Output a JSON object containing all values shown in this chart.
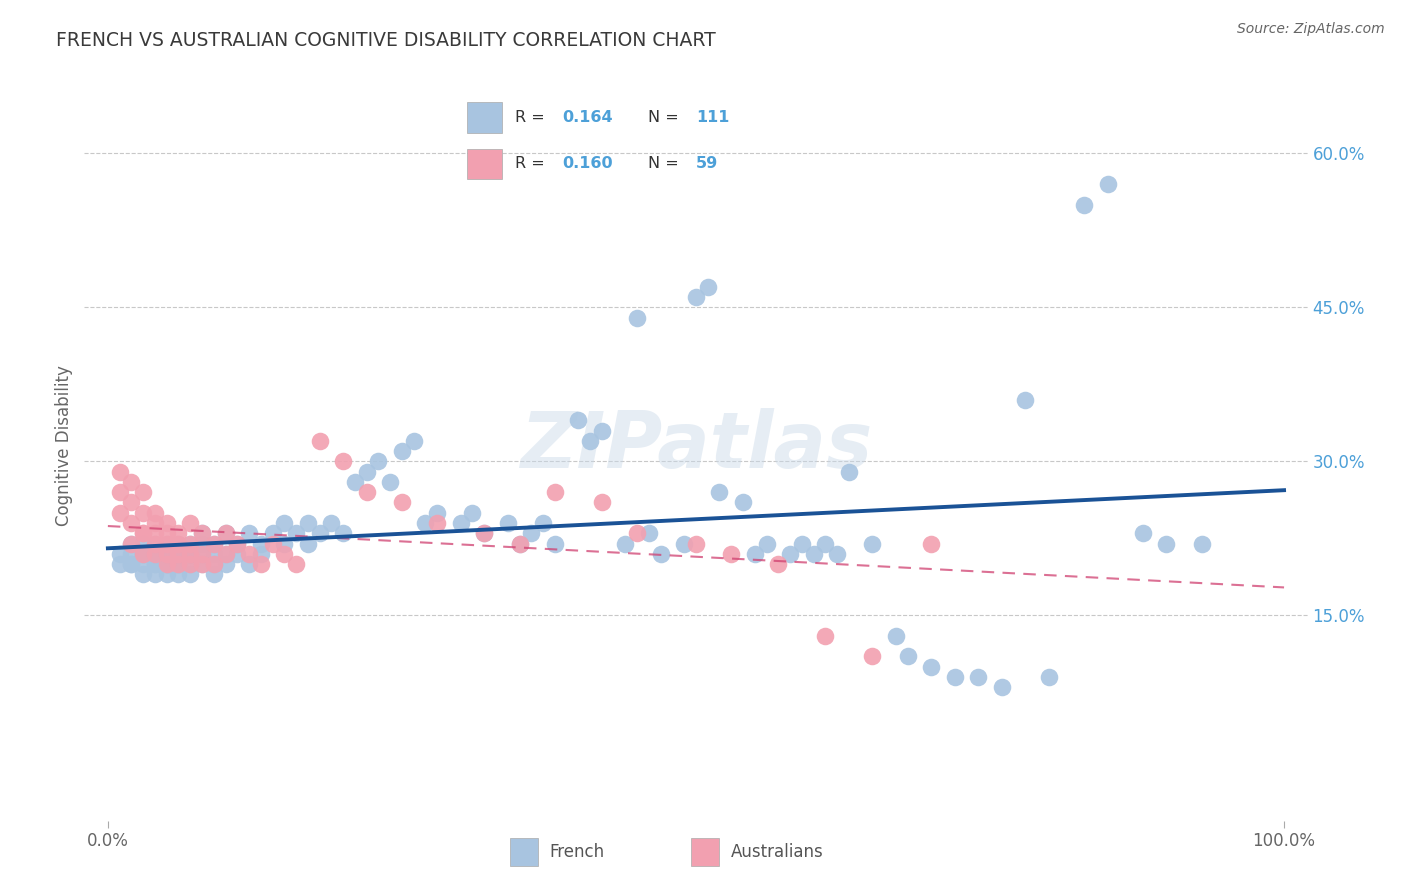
{
  "title": "FRENCH VS AUSTRALIAN COGNITIVE DISABILITY CORRELATION CHART",
  "source": "Source: ZipAtlas.com",
  "ylabel": "Cognitive Disability",
  "french_R": 0.164,
  "french_N": 111,
  "australian_R": 0.16,
  "australian_N": 59,
  "french_color": "#a8c4e0",
  "french_line_color": "#1a5296",
  "australian_color": "#f2a0b0",
  "australian_line_color": "#d04070",
  "background_color": "#ffffff",
  "grid_color": "#c8c8c8",
  "title_color": "#3a3a3a",
  "watermark": "ZIPatlas",
  "xlim": [
    0.0,
    1.0
  ],
  "ylim": [
    -0.05,
    0.68
  ],
  "right_yticks": [
    0.15,
    0.3,
    0.45,
    0.6
  ],
  "right_yticklabels": [
    "15.0%",
    "30.0%",
    "45.0%",
    "60.0%"
  ],
  "french_x": [
    0.01,
    0.01,
    0.02,
    0.02,
    0.02,
    0.02,
    0.03,
    0.03,
    0.03,
    0.03,
    0.03,
    0.04,
    0.04,
    0.04,
    0.04,
    0.04,
    0.04,
    0.05,
    0.05,
    0.05,
    0.05,
    0.05,
    0.05,
    0.05,
    0.06,
    0.06,
    0.06,
    0.06,
    0.06,
    0.06,
    0.07,
    0.07,
    0.07,
    0.07,
    0.07,
    0.08,
    0.08,
    0.08,
    0.08,
    0.09,
    0.09,
    0.09,
    0.09,
    0.1,
    0.1,
    0.1,
    0.11,
    0.11,
    0.12,
    0.12,
    0.13,
    0.13,
    0.14,
    0.15,
    0.15,
    0.16,
    0.17,
    0.17,
    0.18,
    0.19,
    0.2,
    0.21,
    0.22,
    0.23,
    0.24,
    0.25,
    0.26,
    0.27,
    0.28,
    0.3,
    0.31,
    0.32,
    0.34,
    0.35,
    0.36,
    0.37,
    0.38,
    0.4,
    0.41,
    0.42,
    0.44,
    0.45,
    0.46,
    0.47,
    0.49,
    0.5,
    0.51,
    0.52,
    0.54,
    0.55,
    0.56,
    0.58,
    0.59,
    0.6,
    0.61,
    0.62,
    0.63,
    0.65,
    0.67,
    0.68,
    0.7,
    0.72,
    0.74,
    0.76,
    0.78,
    0.8,
    0.83,
    0.85,
    0.88,
    0.9,
    0.93
  ],
  "french_y": [
    0.21,
    0.2,
    0.2,
    0.22,
    0.21,
    0.2,
    0.21,
    0.2,
    0.22,
    0.19,
    0.21,
    0.2,
    0.22,
    0.21,
    0.2,
    0.19,
    0.21,
    0.2,
    0.21,
    0.22,
    0.2,
    0.19,
    0.21,
    0.2,
    0.21,
    0.2,
    0.22,
    0.21,
    0.19,
    0.2,
    0.21,
    0.2,
    0.22,
    0.19,
    0.21,
    0.22,
    0.2,
    0.21,
    0.23,
    0.21,
    0.2,
    0.22,
    0.19,
    0.23,
    0.21,
    0.2,
    0.22,
    0.21,
    0.23,
    0.2,
    0.22,
    0.21,
    0.23,
    0.24,
    0.22,
    0.23,
    0.24,
    0.22,
    0.23,
    0.24,
    0.23,
    0.28,
    0.29,
    0.3,
    0.28,
    0.31,
    0.32,
    0.24,
    0.25,
    0.24,
    0.25,
    0.23,
    0.24,
    0.22,
    0.23,
    0.24,
    0.22,
    0.34,
    0.32,
    0.33,
    0.22,
    0.44,
    0.23,
    0.21,
    0.22,
    0.46,
    0.47,
    0.27,
    0.26,
    0.21,
    0.22,
    0.21,
    0.22,
    0.21,
    0.22,
    0.21,
    0.29,
    0.22,
    0.13,
    0.11,
    0.1,
    0.09,
    0.09,
    0.08,
    0.36,
    0.09,
    0.55,
    0.57,
    0.23,
    0.22,
    0.22
  ],
  "aus_x": [
    0.01,
    0.01,
    0.01,
    0.02,
    0.02,
    0.02,
    0.02,
    0.03,
    0.03,
    0.03,
    0.03,
    0.03,
    0.04,
    0.04,
    0.04,
    0.04,
    0.04,
    0.05,
    0.05,
    0.05,
    0.05,
    0.05,
    0.06,
    0.06,
    0.06,
    0.06,
    0.07,
    0.07,
    0.07,
    0.07,
    0.08,
    0.08,
    0.08,
    0.09,
    0.09,
    0.1,
    0.1,
    0.11,
    0.12,
    0.13,
    0.14,
    0.15,
    0.16,
    0.18,
    0.2,
    0.22,
    0.25,
    0.28,
    0.32,
    0.35,
    0.38,
    0.42,
    0.45,
    0.5,
    0.53,
    0.57,
    0.61,
    0.65,
    0.7
  ],
  "aus_y": [
    0.27,
    0.25,
    0.29,
    0.24,
    0.26,
    0.22,
    0.28,
    0.23,
    0.25,
    0.21,
    0.27,
    0.23,
    0.22,
    0.24,
    0.21,
    0.25,
    0.23,
    0.22,
    0.24,
    0.2,
    0.23,
    0.21,
    0.22,
    0.2,
    0.23,
    0.21,
    0.22,
    0.2,
    0.24,
    0.21,
    0.21,
    0.23,
    0.2,
    0.22,
    0.2,
    0.21,
    0.23,
    0.22,
    0.21,
    0.2,
    0.22,
    0.21,
    0.2,
    0.32,
    0.3,
    0.27,
    0.26,
    0.24,
    0.23,
    0.22,
    0.27,
    0.26,
    0.23,
    0.22,
    0.21,
    0.2,
    0.13,
    0.11,
    0.22
  ]
}
